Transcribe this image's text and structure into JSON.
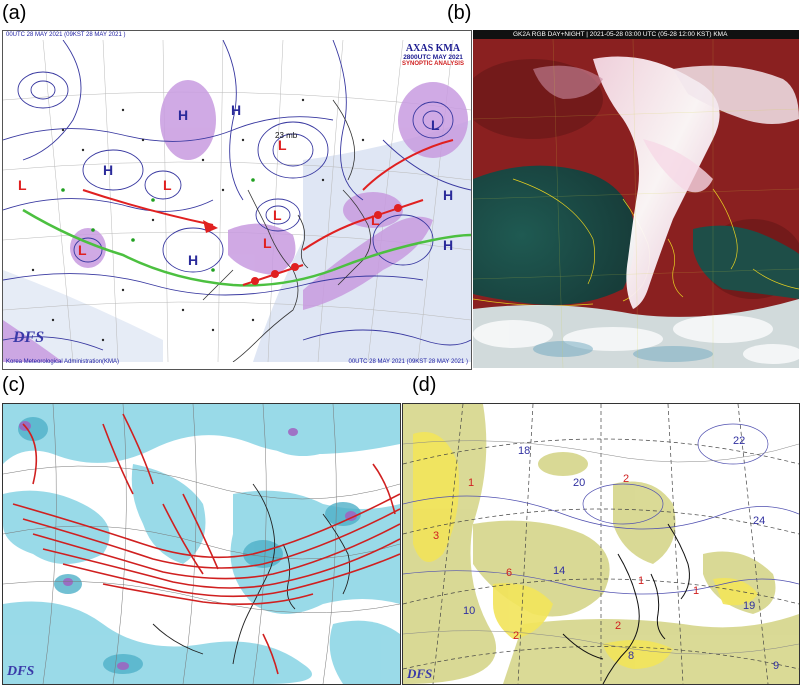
{
  "panels": {
    "a": {
      "label": "(a)",
      "header_left": "00UTC 28 MAY 2021 (09KST 28 MAY 2021 )",
      "footer_left": "Korea Meteorological Administration(KMA)",
      "footer_right": "00UTC 28 MAY 2021 (09KST 28 MAY 2021 )",
      "box_title": "AXAS KMA",
      "box_time": "2800UTC MAY 2021",
      "box_sub": "SYNOPTIC ANALYSIS",
      "logo": "DFS",
      "low_value": "23 mb"
    },
    "b": {
      "label": "(b)",
      "header": "GK2A RGB DAY+NIGHT | 2021-05-28 03:00 UTC (05-28 12:00 KST) KMA"
    },
    "c": {
      "label": "(c)",
      "logo": "DFS"
    },
    "d": {
      "label": "(d)",
      "logo": "DFS"
    }
  },
  "colors": {
    "map_bg": "#e8ecf5",
    "isobar": "#2a2a8a",
    "front_red": "#e02020",
    "front_green": "#4cc040",
    "purple": "#b070d0",
    "jet_red": "#d02020",
    "cyan": "#7fd0e0",
    "yellow": "#f0e060"
  }
}
